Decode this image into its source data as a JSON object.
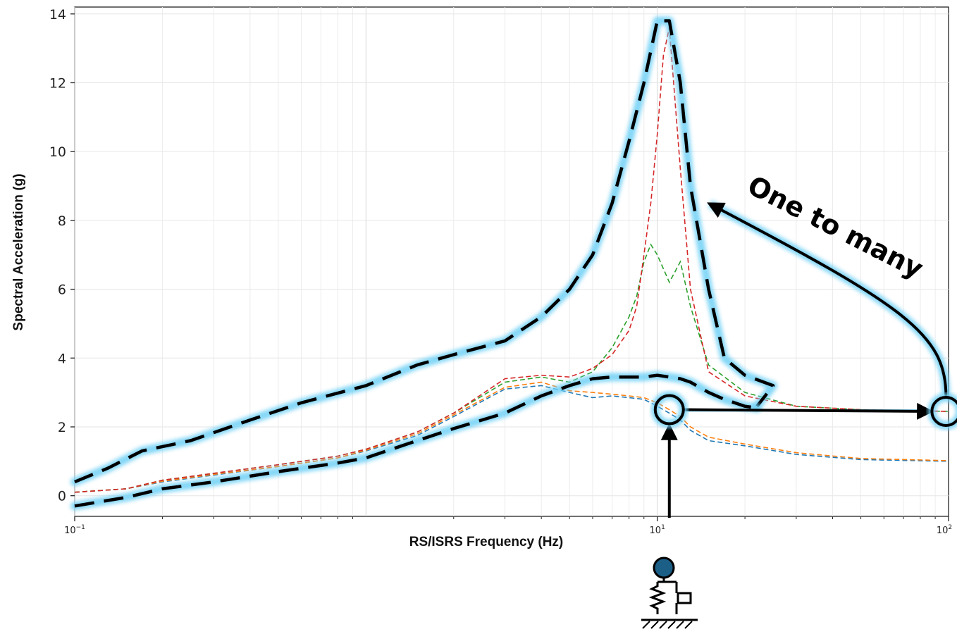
{
  "chart_data": {
    "type": "line",
    "xscale": "log",
    "xlim": [
      0.1,
      100
    ],
    "ylim": [
      -0.6,
      14.2
    ],
    "grid": true,
    "title": "",
    "xlabel": "RS/ISRS Frequency (Hz)",
    "ylabel": "Spectral Acceleration (g)",
    "yticks": [
      0,
      2,
      4,
      6,
      8,
      10,
      12,
      14
    ],
    "xticks": [
      {
        "value": 0.1,
        "base": "10",
        "exp": "−1"
      },
      {
        "value": 10,
        "base": "10",
        "exp": "1"
      },
      {
        "value": 100,
        "base": "10",
        "exp": "2"
      }
    ],
    "series": [
      {
        "color": "#1f77b4",
        "dash": "dashed",
        "x": [
          0.1,
          0.15,
          0.2,
          0.3,
          0.5,
          0.8,
          1,
          1.5,
          2,
          3,
          4,
          5,
          6,
          7,
          8,
          9,
          10,
          11,
          12,
          13,
          15,
          20,
          30,
          50,
          100
        ],
        "y": [
          0.1,
          0.2,
          0.4,
          0.6,
          0.85,
          1.1,
          1.3,
          1.75,
          2.3,
          3.1,
          3.2,
          3.0,
          2.85,
          2.9,
          2.85,
          2.8,
          2.6,
          2.4,
          2.2,
          1.9,
          1.6,
          1.45,
          1.2,
          1.05,
          1.0
        ]
      },
      {
        "color": "#ff7f0e",
        "dash": "dashed",
        "x": [
          0.1,
          0.15,
          0.2,
          0.3,
          0.5,
          0.8,
          1,
          1.5,
          2,
          3,
          4,
          5,
          6,
          7,
          8,
          9,
          10,
          11,
          12,
          13,
          15,
          20,
          30,
          50,
          100
        ],
        "y": [
          0.1,
          0.2,
          0.42,
          0.62,
          0.85,
          1.1,
          1.32,
          1.8,
          2.35,
          3.15,
          3.3,
          3.05,
          3.0,
          2.95,
          2.9,
          2.85,
          2.7,
          2.5,
          2.3,
          2.0,
          1.7,
          1.5,
          1.25,
          1.08,
          1.02
        ]
      },
      {
        "color": "#2ca02c",
        "dash": "dashed",
        "x": [
          0.1,
          0.15,
          0.2,
          0.3,
          0.5,
          0.8,
          1,
          1.5,
          2,
          3,
          4,
          5,
          6,
          7,
          8,
          8.5,
          9,
          9.5,
          10,
          11,
          12,
          13,
          15,
          20,
          30,
          50,
          100
        ],
        "y": [
          0.1,
          0.2,
          0.45,
          0.65,
          0.9,
          1.15,
          1.35,
          1.85,
          2.4,
          3.3,
          3.45,
          3.3,
          3.6,
          4.3,
          5.2,
          5.8,
          6.8,
          7.3,
          7.0,
          6.2,
          6.8,
          5.5,
          3.8,
          3.0,
          2.6,
          2.5,
          2.45
        ]
      },
      {
        "color": "#d62728",
        "dash": "dashed",
        "x": [
          0.1,
          0.15,
          0.2,
          0.3,
          0.5,
          0.8,
          1,
          1.5,
          2,
          3,
          4,
          5,
          6,
          7,
          8,
          8.5,
          9,
          9.5,
          10,
          10.5,
          11,
          12,
          13,
          15,
          20,
          30,
          50,
          100
        ],
        "y": [
          0.1,
          0.2,
          0.45,
          0.65,
          0.9,
          1.15,
          1.35,
          1.85,
          2.4,
          3.4,
          3.5,
          3.45,
          3.7,
          4.1,
          4.8,
          5.5,
          7.0,
          8.5,
          10.5,
          12.8,
          13.6,
          9.5,
          6.0,
          3.6,
          2.9,
          2.6,
          2.5,
          2.45
        ]
      }
    ],
    "envelope_upper": {
      "x": [
        0.1,
        0.13,
        0.17,
        0.25,
        0.4,
        0.6,
        1,
        1.5,
        2,
        3,
        4,
        5,
        6,
        7,
        8,
        9,
        10,
        11,
        12,
        13,
        15,
        17,
        20,
        25,
        22
      ],
      "y": [
        0.4,
        0.8,
        1.3,
        1.6,
        2.2,
        2.7,
        3.2,
        3.8,
        4.1,
        4.5,
        5.2,
        6.0,
        7.0,
        8.5,
        10.3,
        12.0,
        13.8,
        13.8,
        12.0,
        9.0,
        6.0,
        4.0,
        3.5,
        3.2,
        2.6
      ]
    },
    "envelope_lower": {
      "x": [
        0.1,
        0.15,
        0.2,
        0.3,
        0.5,
        0.8,
        1,
        1.5,
        2,
        3,
        4,
        5,
        6,
        7,
        8,
        9,
        10,
        11,
        12,
        13,
        15,
        17,
        20,
        22
      ],
      "y": [
        -0.3,
        -0.05,
        0.2,
        0.4,
        0.7,
        0.95,
        1.1,
        1.6,
        1.95,
        2.4,
        2.9,
        3.2,
        3.4,
        3.45,
        3.45,
        3.45,
        3.5,
        3.45,
        3.4,
        3.3,
        3.0,
        2.8,
        2.6,
        2.55
      ]
    },
    "annotations": [
      {
        "text": "One to many"
      }
    ],
    "marked_point": {
      "x": 11,
      "y": 2.5
    },
    "marked_point_far": {
      "x": 98,
      "y": 2.45
    }
  }
}
